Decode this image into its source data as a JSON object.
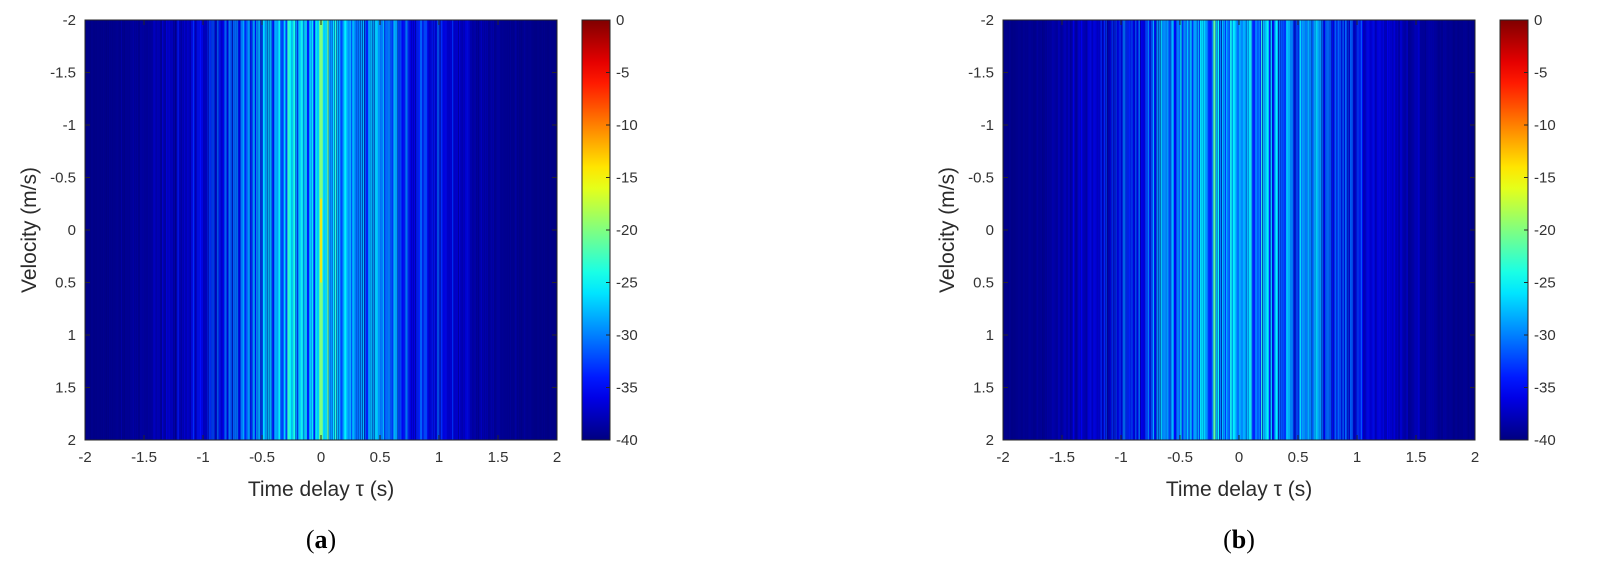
{
  "chart_data": [
    {
      "type": "heatmap",
      "caption_open": "(",
      "caption_letter": "a",
      "caption_close": ")",
      "xlabel": "Time delay τ (s)",
      "ylabel": "Velocity (m/s)",
      "xlim": [
        -2,
        2
      ],
      "ylim": [
        -2,
        2
      ],
      "y_reversed": true,
      "xticks": [
        -2,
        -1.5,
        -1,
        -0.5,
        0,
        0.5,
        1,
        1.5,
        2
      ],
      "yticks": [
        -2,
        -1.5,
        -1,
        -0.5,
        0,
        0.5,
        1,
        1.5,
        2
      ],
      "colorbar": {
        "min": -40,
        "max": 0,
        "ticks": [
          0,
          -5,
          -10,
          -15,
          -20,
          -25,
          -30,
          -35,
          -40
        ],
        "colormap": "jet"
      },
      "background_level": -40,
      "spread": 1.4,
      "peak": {
        "x": 0,
        "level": -20,
        "width": 0.03
      },
      "seed": 7
    },
    {
      "type": "heatmap",
      "caption_open": "(",
      "caption_letter": "b",
      "caption_close": ")",
      "xlabel": "Time delay τ (s)",
      "ylabel": "Velocity (m/s)",
      "xlim": [
        -2,
        2
      ],
      "ylim": [
        -2,
        2
      ],
      "y_reversed": true,
      "xticks": [
        -2,
        -1.5,
        -1,
        -0.5,
        0,
        0.5,
        1,
        1.5,
        2
      ],
      "yticks": [
        -2,
        -1.5,
        -1,
        -0.5,
        0,
        0.5,
        1,
        1.5,
        2
      ],
      "colorbar": {
        "min": -40,
        "max": 0,
        "ticks": [
          0,
          -5,
          -10,
          -15,
          -20,
          -25,
          -30,
          -35,
          -40
        ],
        "colormap": "jet"
      },
      "background_level": -40,
      "spread": 1.5,
      "peak": null,
      "seed": 23
    }
  ]
}
